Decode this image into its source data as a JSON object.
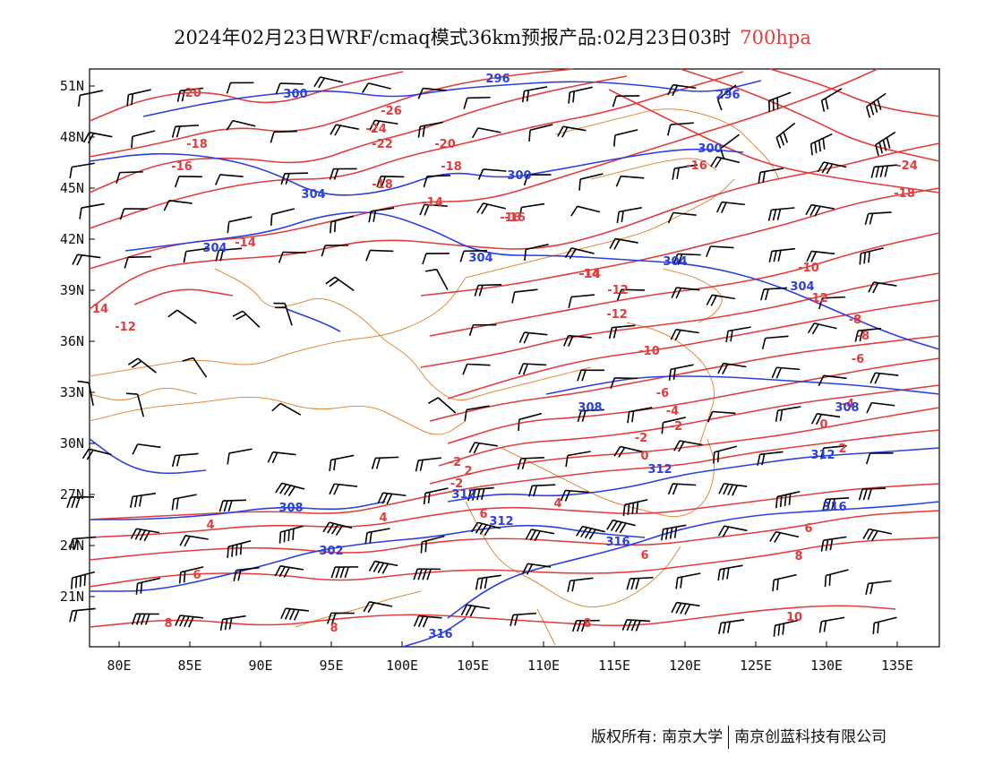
{
  "title": {
    "main": "2024年02月23日WRF/cmaq模式36km预报产品:02月23日03时",
    "level": "700hpa"
  },
  "colors": {
    "temperature": "#e23c3c",
    "geopotential": "#2a3fe0",
    "border": "#e08a3c",
    "wind": "#000000"
  },
  "axes": {
    "lat_ticks": [
      "51N",
      "48N",
      "45N",
      "42N",
      "39N",
      "36N",
      "33N",
      "30N",
      "27N",
      "24N",
      "21N"
    ],
    "lon_ticks": [
      "80E",
      "85E",
      "90E",
      "95E",
      "100E",
      "105E",
      "110E",
      "115E",
      "120E",
      "125E",
      "130E",
      "135E"
    ]
  },
  "temperature_labels": [
    "-20",
    "-26",
    "-24",
    "-22",
    "-20",
    "-18",
    "-18",
    "-16",
    "-18",
    "-16",
    "-14",
    "-14",
    "-16",
    "-14",
    "-12",
    "-14",
    "-12",
    "14",
    "-12",
    "-10",
    "-12",
    "-10",
    "-8",
    "-8",
    "-6",
    "-6",
    "-4",
    "-4",
    "-2",
    "-2",
    "-2",
    "0",
    "0",
    "2",
    "2",
    "-2",
    "4",
    "4",
    "4",
    "6",
    "6",
    "6",
    "6",
    "8",
    "8",
    "8",
    "8",
    "10",
    "-24",
    "-18",
    "-16"
  ],
  "height_labels": [
    "300",
    "296",
    "296",
    "300",
    "300",
    "304",
    "304",
    "304",
    "304",
    "304",
    "308",
    "308",
    "308",
    "312",
    "312",
    "312",
    "312",
    "316",
    "316",
    "316",
    "302"
  ],
  "footer": {
    "left": "版权所有: 南京大学",
    "right": "南京创蓝科技有限公司"
  }
}
